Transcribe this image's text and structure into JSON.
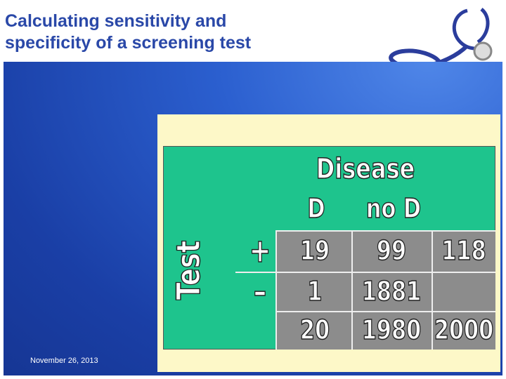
{
  "header": {
    "title": "Calculating sensitivity and specificity of a screening test"
  },
  "footer": {
    "date": "November 26, 2013"
  },
  "table": {
    "column_group": "Disease",
    "columns": [
      "D",
      "no D"
    ],
    "row_group": "Test",
    "rows": [
      {
        "label": "+",
        "cells": [
          19,
          99,
          118
        ]
      },
      {
        "label": "–",
        "cells": [
          1,
          1881
        ]
      },
      {
        "cells": [
          20,
          1980,
          2000
        ]
      }
    ]
  }
}
